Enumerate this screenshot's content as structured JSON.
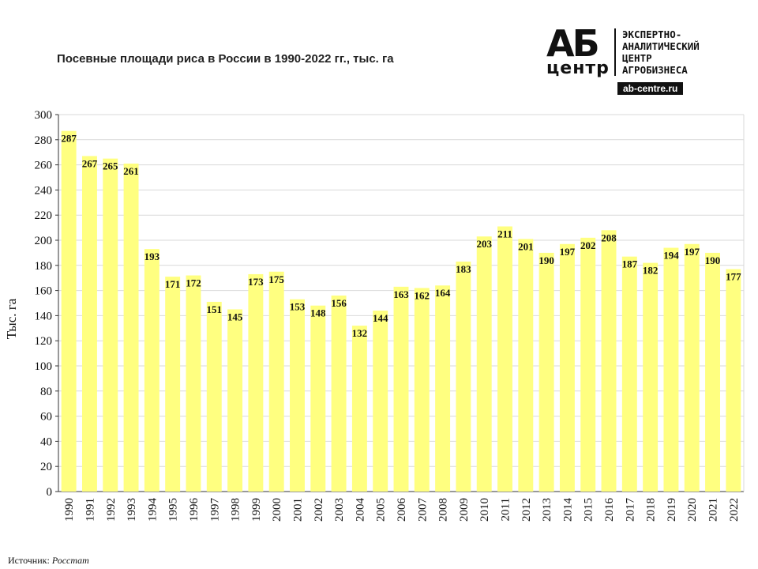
{
  "title": "Посевные площади риса в России в 1990-2022 гг., тыс. га",
  "logo": {
    "mark_top": "АБ",
    "mark_bottom": "центр",
    "lines": [
      "ЭКСПЕРТНО-",
      "АНАЛИТИЧЕСКИЙ",
      "ЦЕНТР",
      "АГРОБИЗНЕСА"
    ],
    "url": "ab-centre.ru"
  },
  "source": {
    "label": "Источник:",
    "value": "Росстат"
  },
  "colors": {
    "bar": "#FFFF80",
    "grid": "#d9d9d9",
    "axis": "#333333"
  },
  "chart_data": {
    "type": "bar",
    "title": "Посевные площади риса в России в 1990-2022 гг., тыс. га",
    "xlabel": "",
    "ylabel": "Тыс. га",
    "ylim": [
      0,
      300
    ],
    "yticks": [
      0,
      20,
      40,
      60,
      80,
      100,
      120,
      140,
      160,
      180,
      200,
      220,
      240,
      260,
      280,
      300
    ],
    "grid": true,
    "data_labels": true,
    "categories": [
      "1990",
      "1991",
      "1992",
      "1993",
      "1994",
      "1995",
      "1996",
      "1997",
      "1998",
      "1999",
      "2000",
      "2001",
      "2002",
      "2003",
      "2004",
      "2005",
      "2006",
      "2007",
      "2008",
      "2009",
      "2010",
      "2011",
      "2012",
      "2013",
      "2014",
      "2015",
      "2016",
      "2017",
      "2018",
      "2019",
      "2020",
      "2021",
      "2022"
    ],
    "values": [
      287,
      267,
      265,
      261,
      193,
      171,
      172,
      151,
      145,
      173,
      175,
      153,
      148,
      156,
      132,
      144,
      163,
      162,
      164,
      183,
      203,
      211,
      201,
      190,
      197,
      202,
      208,
      187,
      182,
      194,
      197,
      190,
      177
    ]
  }
}
